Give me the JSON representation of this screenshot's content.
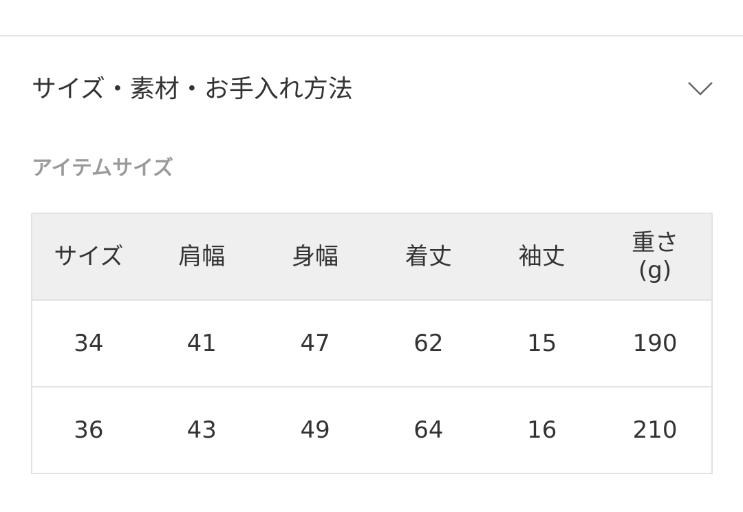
{
  "section": {
    "title": "サイズ・素材・お手入れ方法",
    "expand_icon": "chevron-down-icon",
    "subtitle": "アイテムサイズ"
  },
  "size_table": {
    "headers": [
      "サイズ",
      "肩幅",
      "身幅",
      "着丈",
      "袖丈",
      "重さ\n(g)"
    ],
    "rows": [
      [
        "34",
        "41",
        "47",
        "62",
        "15",
        "190"
      ],
      [
        "36",
        "43",
        "49",
        "64",
        "16",
        "210"
      ]
    ]
  }
}
